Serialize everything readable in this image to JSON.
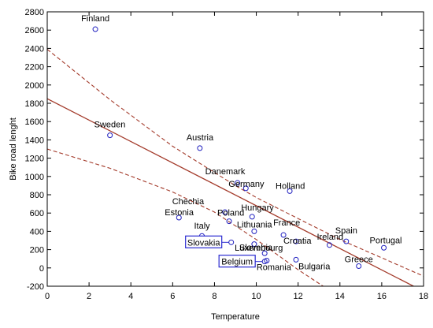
{
  "chart_data": {
    "type": "scatter",
    "title": "",
    "xlabel": "Temperature",
    "ylabel": "Bike road lenght",
    "xlim": [
      0,
      18
    ],
    "ylim": [
      -200,
      2800
    ],
    "xticks": [
      "0",
      "2",
      "4",
      "6",
      "8",
      "10",
      "12",
      "14",
      "16",
      "18"
    ],
    "yticks": [
      "-200",
      "0",
      "200",
      "400",
      "600",
      "800",
      "1000",
      "1200",
      "1400",
      "1600",
      "1800",
      "2000",
      "2200",
      "2400",
      "2600",
      "2800"
    ],
    "grid": false,
    "colors": {
      "points": "#1f1fbf",
      "fit_line": "#a33a2a",
      "box": "#2a2ad0"
    },
    "points": [
      {
        "name": "Finland",
        "x": 2.3,
        "y": 2610
      },
      {
        "name": "Sweden",
        "x": 3.0,
        "y": 1450
      },
      {
        "name": "Austria",
        "x": 7.3,
        "y": 1310
      },
      {
        "name": "Danemark",
        "x": 9.1,
        "y": 930
      },
      {
        "name": "Germany",
        "x": 9.5,
        "y": 870
      },
      {
        "name": "Holland",
        "x": 11.6,
        "y": 840
      },
      {
        "name": "Chechia",
        "x": 8.5,
        "y": 610
      },
      {
        "name": "Estonia",
        "x": 6.3,
        "y": 550
      },
      {
        "name": "Hungary",
        "x": 9.8,
        "y": 560
      },
      {
        "name": "Poland",
        "x": 8.7,
        "y": 510
      },
      {
        "name": "Lithuania",
        "x": 9.9,
        "y": 400
      },
      {
        "name": "France",
        "x": 11.3,
        "y": 360
      },
      {
        "name": "Italy",
        "x": 7.4,
        "y": 350
      },
      {
        "name": "Spain",
        "x": 14.3,
        "y": 290
      },
      {
        "name": "Croatia",
        "x": 11.9,
        "y": 290
      },
      {
        "name": "Slovakia",
        "x": 8.8,
        "y": 280
      },
      {
        "name": "Slovenia",
        "x": 9.9,
        "y": 260
      },
      {
        "name": "Ireland",
        "x": 13.5,
        "y": 250
      },
      {
        "name": "Portugal",
        "x": 16.1,
        "y": 220
      },
      {
        "name": "Luxembourg",
        "x": 10.4,
        "y": 160
      },
      {
        "name": "Belgium",
        "x": 10.4,
        "y": 70
      },
      {
        "name": "Romania",
        "x": 10.5,
        "y": 80
      },
      {
        "name": "Bulgaria",
        "x": 11.9,
        "y": 90
      },
      {
        "name": "Greece",
        "x": 14.9,
        "y": 20
      }
    ],
    "fit_line": {
      "intercept": 1850,
      "slope": -117
    },
    "confidence_upper": [
      {
        "x": 0,
        "y": 2390
      },
      {
        "x": 3,
        "y": 1840
      },
      {
        "x": 6,
        "y": 1330
      },
      {
        "x": 9,
        "y": 900
      },
      {
        "x": 10,
        "y": 770
      },
      {
        "x": 12,
        "y": 540
      },
      {
        "x": 14,
        "y": 310
      },
      {
        "x": 16,
        "y": 110
      },
      {
        "x": 18,
        "y": -90
      }
    ],
    "confidence_lower": [
      {
        "x": 0,
        "y": 1300
      },
      {
        "x": 3,
        "y": 1090
      },
      {
        "x": 6,
        "y": 830
      },
      {
        "x": 8,
        "y": 610
      },
      {
        "x": 10,
        "y": 310
      },
      {
        "x": 12,
        "y": -20
      },
      {
        "x": 13.2,
        "y": -200
      }
    ]
  }
}
